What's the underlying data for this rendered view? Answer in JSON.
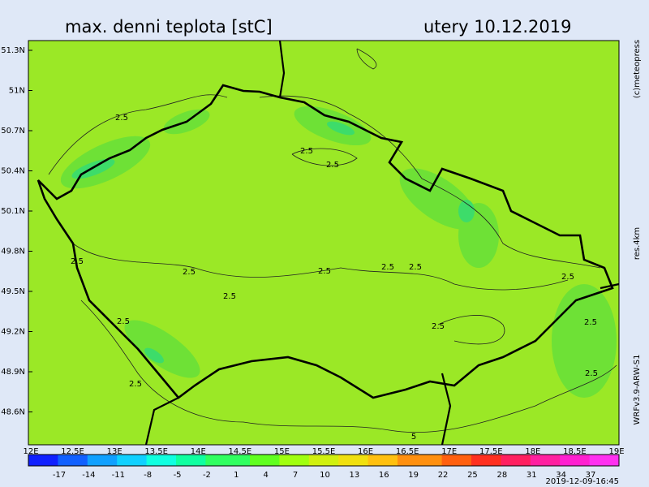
{
  "header": {
    "title": "max. denni teplota [stC]",
    "date": "utery 10.12.2019"
  },
  "side_labels": {
    "copyright": "(c)meteopress",
    "resolution": "res.4km",
    "model": "WRFv3.9-ARW-S1"
  },
  "lat_labels": [
    "51.3N",
    "51N",
    "50.7N",
    "50.4N",
    "50.1N",
    "49.8N",
    "49.5N",
    "49.2N",
    "48.9N",
    "48.6N"
  ],
  "lon_labels": [
    "12E",
    "12.5E",
    "13E",
    "13.5E",
    "14E",
    "14.5E",
    "15E",
    "15.5E",
    "16E",
    "16.5E",
    "17E",
    "17.5E",
    "18E",
    "18.5E",
    "19E"
  ],
  "colorbar": {
    "labels": [
      "-17",
      "-14",
      "-11",
      "-8",
      "-5",
      "-2",
      "1",
      "4",
      "7",
      "10",
      "13",
      "16",
      "19",
      "22",
      "25",
      "28",
      "31",
      "34",
      "37"
    ]
  },
  "contour_labels": [
    "2.5",
    "2.5",
    "2.5",
    "2.5",
    "2.5",
    "2.5",
    "2.5",
    "2.5",
    "2.5",
    "2.5",
    "2.5",
    "2.5",
    "2.5",
    "2.5",
    "2.5",
    "5"
  ],
  "timestamp": "2019-12-09-16:45"
}
